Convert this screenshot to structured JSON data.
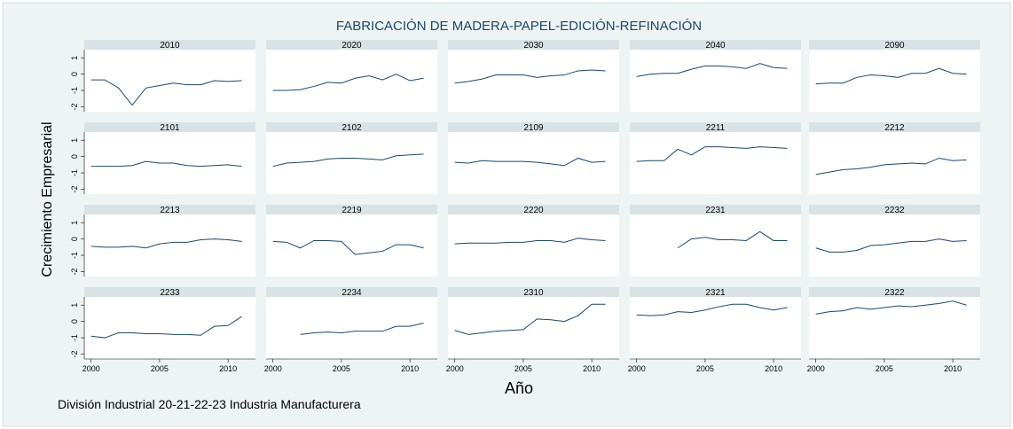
{
  "chart_data": {
    "type": "line",
    "title": "FABRICACIÓN DE MADERA-PAPEL-EDICIÓN-REFINACIÓN",
    "xlabel": "Año",
    "ylabel": "Crecimiento Empresarial",
    "note": "División Industrial 20-21-22-23 Industria Manufacturera",
    "color": "#1a476f",
    "x": [
      2000,
      2001,
      2002,
      2003,
      2004,
      2005,
      2006,
      2007,
      2008,
      2009,
      2010,
      2011
    ],
    "xlim": [
      1999.5,
      2012
    ],
    "ylim": [
      -2.3,
      1.5
    ],
    "xticks": [
      2000,
      2005,
      2010
    ],
    "yticks": [
      -2,
      -1,
      0,
      1
    ],
    "panels": [
      {
        "title": "2010",
        "values": [
          -0.35,
          -0.35,
          -0.85,
          -1.9,
          -0.85,
          -0.7,
          -0.55,
          -0.65,
          -0.65,
          -0.4,
          -0.45,
          -0.4
        ]
      },
      {
        "title": "2020",
        "values": [
          -1.0,
          -1.0,
          -0.95,
          -0.75,
          -0.5,
          -0.55,
          -0.25,
          -0.1,
          -0.35,
          0.0,
          -0.4,
          -0.25
        ]
      },
      {
        "title": "2030",
        "values": [
          -0.55,
          -0.45,
          -0.3,
          -0.05,
          -0.05,
          -0.05,
          -0.2,
          -0.1,
          -0.05,
          0.2,
          0.25,
          0.2
        ]
      },
      {
        "title": "2040",
        "values": [
          -0.15,
          0.0,
          0.05,
          0.05,
          0.3,
          0.5,
          0.5,
          0.45,
          0.35,
          0.65,
          0.4,
          0.35
        ]
      },
      {
        "title": "2090",
        "values": [
          -0.6,
          -0.55,
          -0.55,
          -0.2,
          -0.05,
          -0.1,
          -0.2,
          0.05,
          0.05,
          0.35,
          0.05,
          0.0
        ]
      },
      {
        "title": "2101",
        "values": [
          -0.6,
          -0.6,
          -0.6,
          -0.55,
          -0.3,
          -0.4,
          -0.4,
          -0.55,
          -0.6,
          -0.55,
          -0.5,
          -0.6
        ]
      },
      {
        "title": "2102",
        "values": [
          -0.6,
          -0.4,
          -0.35,
          -0.3,
          -0.15,
          -0.1,
          -0.1,
          -0.15,
          -0.2,
          0.05,
          0.1,
          0.15
        ]
      },
      {
        "title": "2109",
        "values": [
          -0.35,
          -0.4,
          -0.25,
          -0.3,
          -0.3,
          -0.3,
          -0.35,
          -0.45,
          -0.55,
          -0.1,
          -0.35,
          -0.3
        ]
      },
      {
        "title": "2211",
        "values": [
          -0.3,
          -0.25,
          -0.25,
          0.45,
          0.1,
          0.6,
          0.6,
          0.55,
          0.5,
          0.6,
          0.55,
          0.5
        ]
      },
      {
        "title": "2212",
        "values": [
          -1.1,
          -0.95,
          -0.8,
          -0.75,
          -0.65,
          -0.5,
          -0.45,
          -0.4,
          -0.45,
          -0.1,
          -0.25,
          -0.2
        ]
      },
      {
        "title": "2213",
        "values": [
          -0.45,
          -0.5,
          -0.5,
          -0.45,
          -0.55,
          -0.3,
          -0.2,
          -0.2,
          -0.05,
          0.0,
          -0.05,
          -0.15
        ]
      },
      {
        "title": "2219",
        "values": [
          -0.15,
          -0.2,
          -0.55,
          -0.1,
          -0.1,
          -0.15,
          -0.95,
          -0.85,
          -0.75,
          -0.35,
          -0.35,
          -0.55
        ]
      },
      {
        "title": "2220",
        "values": [
          -0.3,
          -0.25,
          -0.25,
          -0.25,
          -0.2,
          -0.2,
          -0.1,
          -0.1,
          -0.2,
          0.05,
          -0.05,
          -0.1
        ]
      },
      {
        "title": "2231",
        "values": [
          null,
          null,
          null,
          -0.55,
          0.0,
          0.1,
          -0.05,
          -0.05,
          -0.1,
          0.45,
          -0.1,
          -0.1
        ]
      },
      {
        "title": "2232",
        "values": [
          -0.55,
          -0.8,
          -0.8,
          -0.7,
          -0.4,
          -0.35,
          -0.25,
          -0.15,
          -0.15,
          0.0,
          -0.15,
          -0.1
        ]
      },
      {
        "title": "2233",
        "values": [
          -0.9,
          -1.0,
          -0.7,
          -0.7,
          -0.75,
          -0.75,
          -0.8,
          -0.8,
          -0.85,
          -0.3,
          -0.25,
          0.3
        ]
      },
      {
        "title": "2234",
        "values": [
          null,
          null,
          -0.8,
          -0.7,
          -0.65,
          -0.7,
          -0.6,
          -0.6,
          -0.6,
          -0.3,
          -0.3,
          -0.1
        ]
      },
      {
        "title": "2310",
        "values": [
          -0.55,
          -0.8,
          -0.7,
          -0.6,
          -0.55,
          -0.5,
          0.15,
          0.1,
          0.0,
          0.35,
          1.05,
          1.05
        ]
      },
      {
        "title": "2321",
        "values": [
          0.4,
          0.35,
          0.4,
          0.6,
          0.55,
          0.7,
          0.9,
          1.05,
          1.05,
          0.85,
          0.7,
          0.85
        ]
      },
      {
        "title": "2322",
        "values": [
          0.45,
          0.6,
          0.65,
          0.85,
          0.75,
          0.85,
          0.95,
          0.9,
          1.0,
          1.1,
          1.25,
          1.0
        ]
      }
    ]
  }
}
